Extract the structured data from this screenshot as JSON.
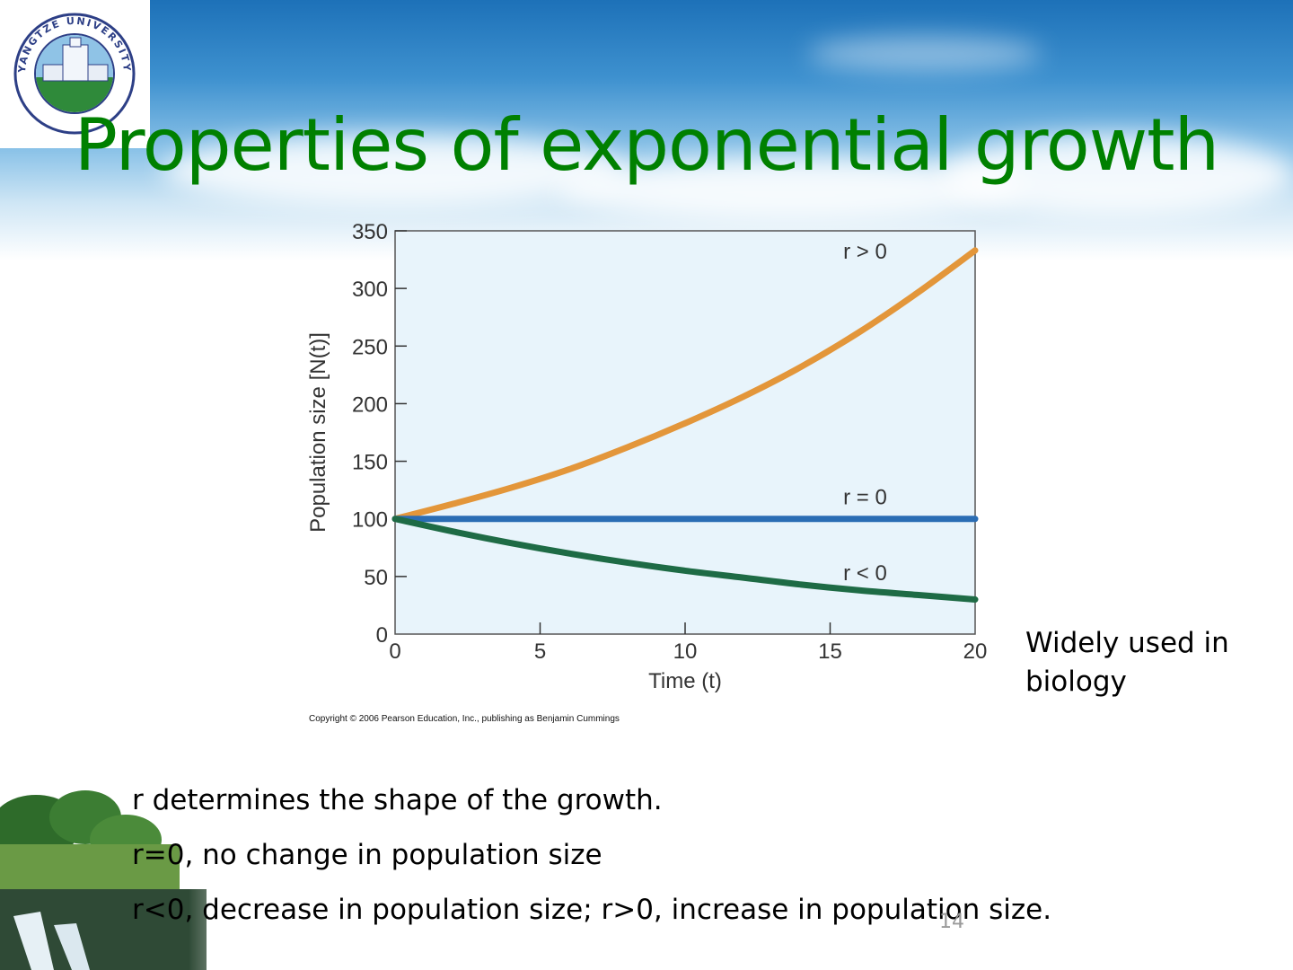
{
  "slide": {
    "title": "Properties of exponential growth",
    "side_note": "Widely used in biology",
    "bullets": [
      "r determines the shape of the growth.",
      "r=0, no change in population size",
      "r<0, decrease in population size; r>0, increase in population size."
    ],
    "page_number": "14",
    "logo_text": "YANGTZE UNIVERSITY"
  },
  "chart_data": {
    "type": "line",
    "xlabel": "Time (t)",
    "ylabel": "Population size [N(t)]",
    "xlim": [
      0,
      20
    ],
    "ylim": [
      0,
      350
    ],
    "x_ticks": [
      0,
      5,
      10,
      15,
      20
    ],
    "y_ticks": [
      0,
      50,
      100,
      150,
      200,
      250,
      300,
      350
    ],
    "copyright": "Copyright © 2006 Pearson Education, Inc., publishing as Benjamin Cummings",
    "grid": false,
    "background_color": "#e8f4fb",
    "series": [
      {
        "name": "r > 0",
        "color": "#e3963a",
        "x": [
          0,
          2,
          4,
          6,
          8,
          10,
          12,
          14,
          16,
          18,
          20
        ],
        "y": [
          100,
          113,
          127,
          143,
          162,
          183,
          206,
          232,
          262,
          296,
          333
        ]
      },
      {
        "name": "r = 0",
        "color": "#2a6db4",
        "x": [
          0,
          2,
          4,
          6,
          8,
          10,
          12,
          14,
          16,
          18,
          20
        ],
        "y": [
          100,
          100,
          100,
          100,
          100,
          100,
          100,
          100,
          100,
          100,
          100
        ]
      },
      {
        "name": "r < 0",
        "color": "#1e6b45",
        "x": [
          0,
          2,
          4,
          6,
          8,
          10,
          12,
          14,
          16,
          18,
          20
        ],
        "y": [
          100,
          89,
          79,
          70,
          62,
          55,
          49,
          43,
          38,
          34,
          30
        ]
      }
    ],
    "series_label_anchor_x": 17
  }
}
